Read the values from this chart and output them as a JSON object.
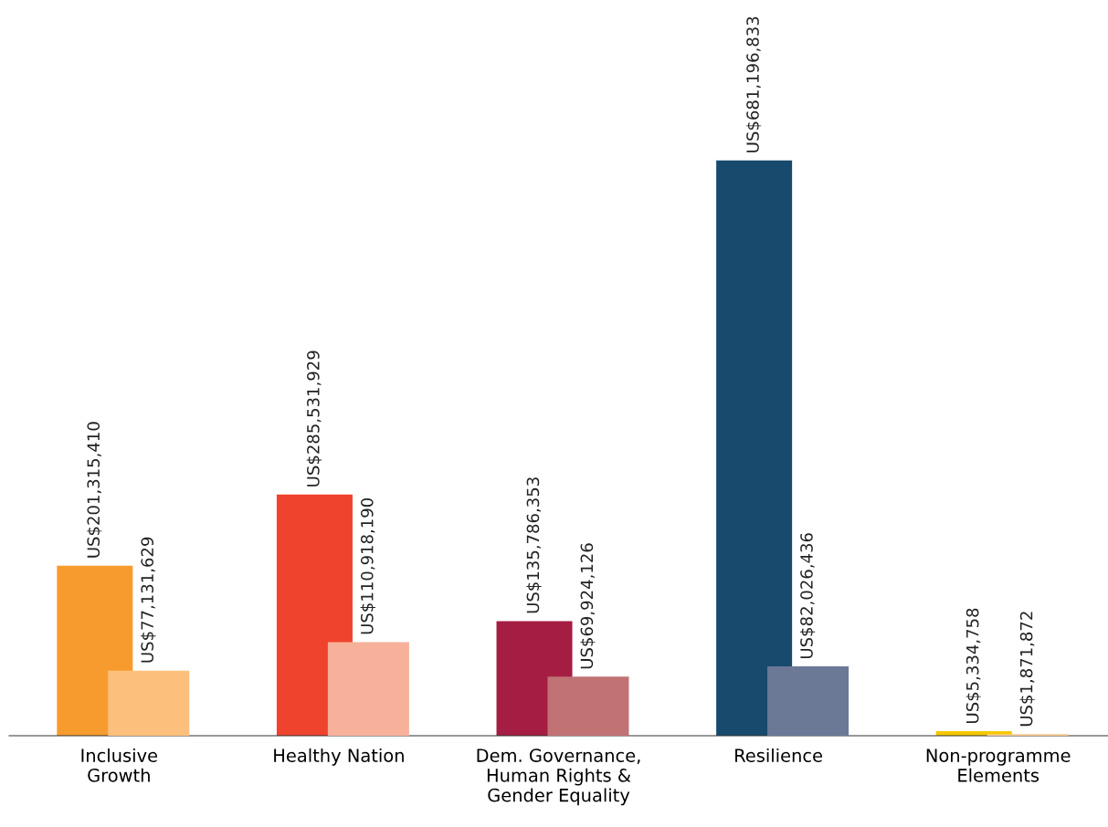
{
  "chart_data": {
    "type": "bar",
    "categories": [
      "Inclusive\nGrowth",
      "Healthy Nation",
      "Dem. Governance,\nHuman Rights &\nGender Equality",
      "Resilience",
      "Non-programme\nElements"
    ],
    "series": [
      {
        "colors": [
          "#f79b2e",
          "#ef432e",
          "#a51d42",
          "#174a6c",
          "#f5c800"
        ],
        "values": [
          201315410,
          285531929,
          135786353,
          681196833,
          5334758
        ],
        "value_labels": [
          "US$201,315,410",
          "US$285,531,929",
          "US$135,786,353",
          "US$681,196,833",
          "US$5,334,758"
        ]
      },
      {
        "colors": [
          "#fdc07c",
          "#f7b19a",
          "#c07275",
          "#6b7896",
          "#f5c88c"
        ],
        "values": [
          77131629,
          110918190,
          69924126,
          82026436,
          1871872
        ],
        "value_labels": [
          "US$77,131,629",
          "US$110,918,190",
          "US$69,924,126",
          "US$82,026,436",
          "US$1,871,872"
        ]
      }
    ],
    "tick_labels": "x",
    "grid": false,
    "legend": false
  }
}
